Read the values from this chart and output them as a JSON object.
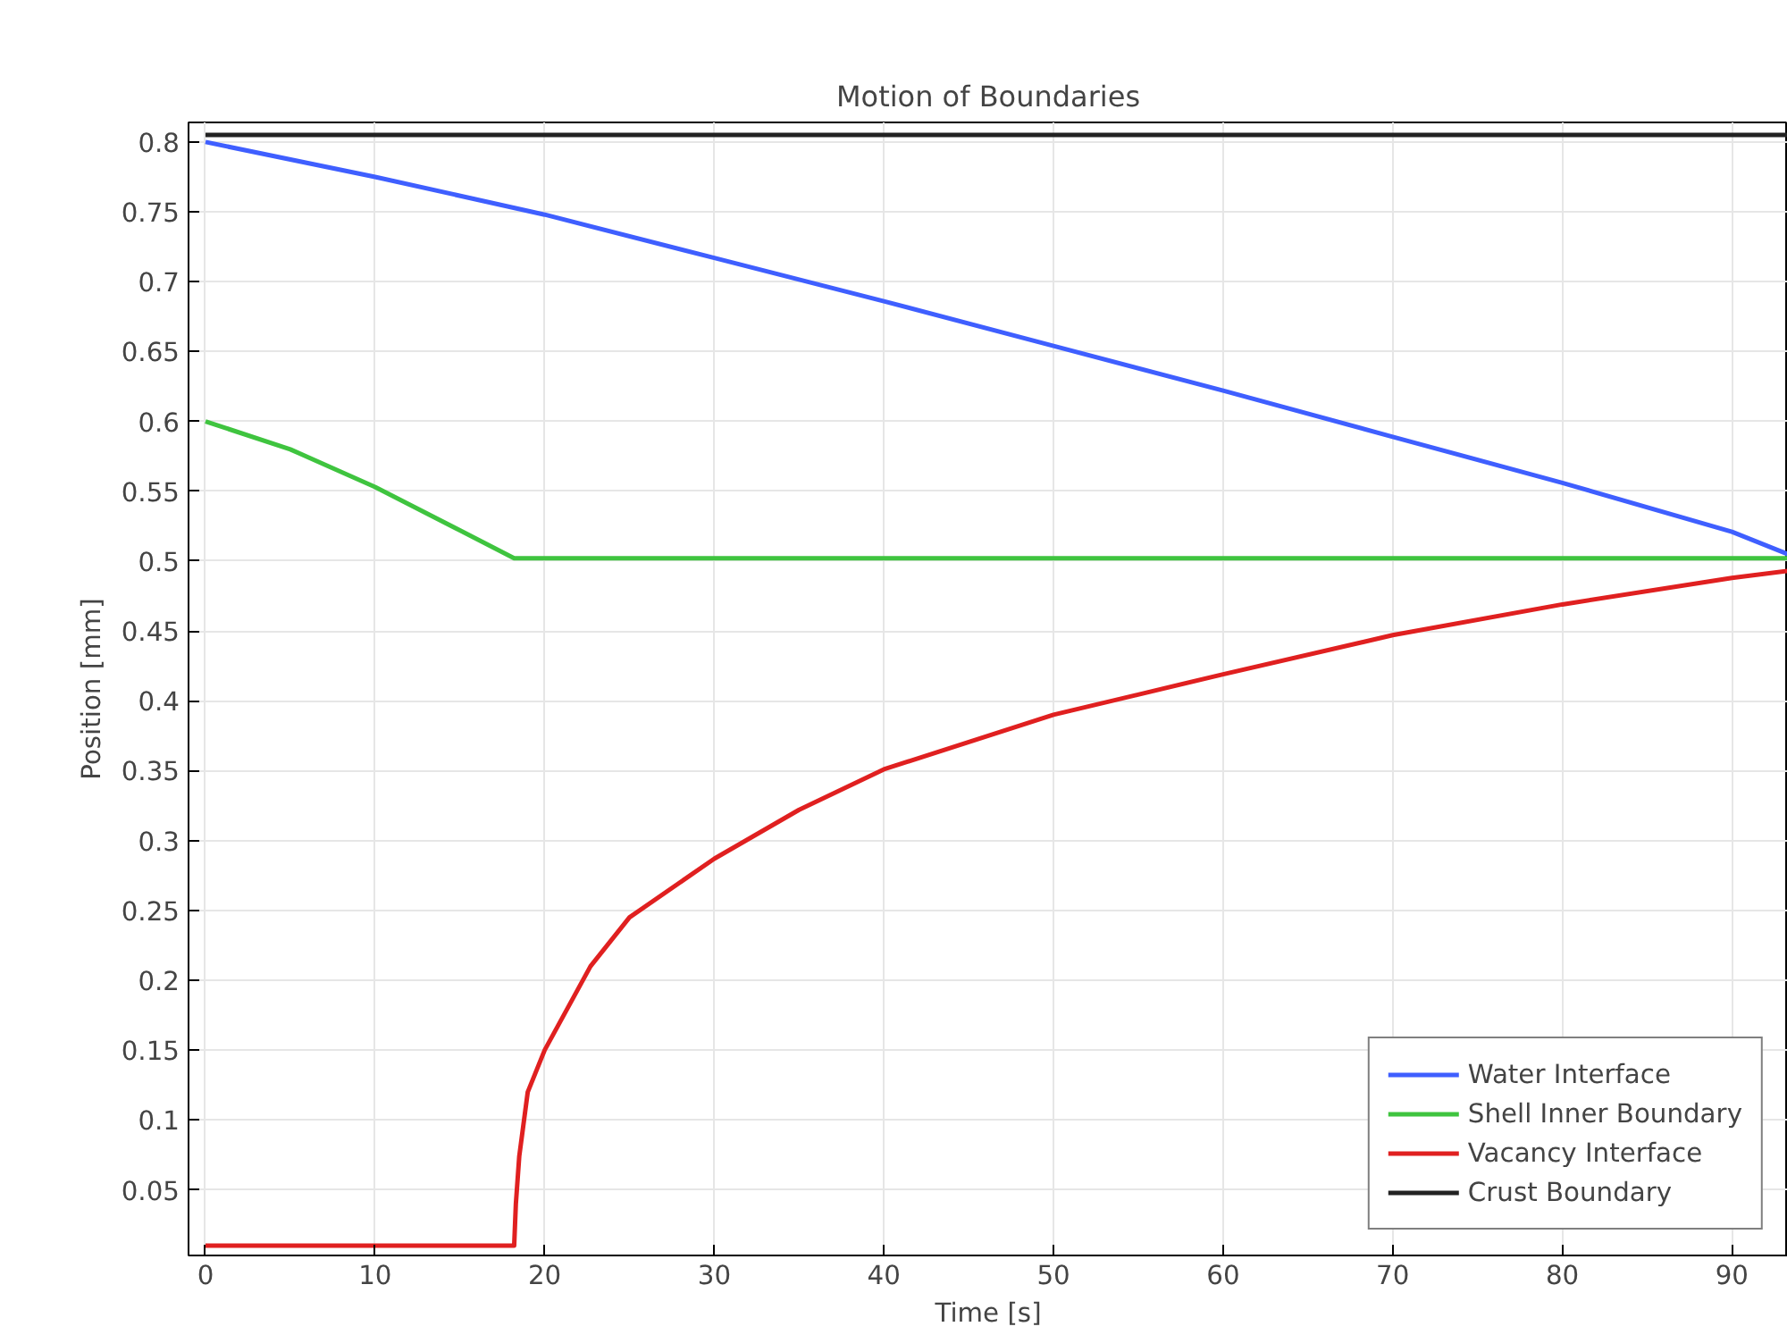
{
  "chart_data": {
    "type": "line",
    "title": "Motion of Boundaries",
    "xlabel": "Time [s]",
    "ylabel": "Position [mm]",
    "xlim": [
      -1.0,
      93.3
    ],
    "ylim": [
      0.003,
      0.814
    ],
    "xticks": [
      0,
      10,
      20,
      30,
      40,
      50,
      60,
      70,
      80,
      90
    ],
    "yticks": [
      0.05,
      0.1,
      0.15,
      0.2,
      0.25,
      0.3,
      0.35,
      0.4,
      0.45,
      0.5,
      0.55,
      0.6,
      0.65,
      0.7,
      0.75,
      0.8
    ],
    "grid": true,
    "legend": "bottom right",
    "marker": "none",
    "line_style": "solid",
    "series": [
      {
        "name": "Water Interface",
        "color": "#3f5fff",
        "x": [
          0,
          10,
          20,
          30,
          40,
          50,
          60,
          70,
          80,
          90,
          93.3
        ],
        "values": [
          0.8,
          0.775,
          0.748,
          0.717,
          0.686,
          0.654,
          0.622,
          0.589,
          0.556,
          0.521,
          0.505
        ]
      },
      {
        "name": "Shell Inner Boundary",
        "color": "#3fc43f",
        "x": [
          0,
          5,
          10,
          15,
          18.2,
          93.3
        ],
        "values": [
          0.6,
          0.58,
          0.553,
          0.522,
          0.502,
          0.502
        ]
      },
      {
        "name": "Vacancy Interface",
        "color": "#e02020",
        "x": [
          0,
          18.2,
          18.3,
          18.5,
          19,
          20,
          22.7,
          25,
          30,
          35,
          40,
          50,
          60,
          70,
          80,
          90,
          93.3
        ],
        "values": [
          0.01,
          0.01,
          0.04,
          0.074,
          0.12,
          0.15,
          0.21,
          0.245,
          0.287,
          0.322,
          0.351,
          0.39,
          0.419,
          0.447,
          0.469,
          0.488,
          0.493
        ]
      },
      {
        "name": "Crust Boundary",
        "color": "#222222",
        "x": [
          0,
          93.3
        ],
        "values": [
          0.805,
          0.805
        ]
      }
    ]
  }
}
